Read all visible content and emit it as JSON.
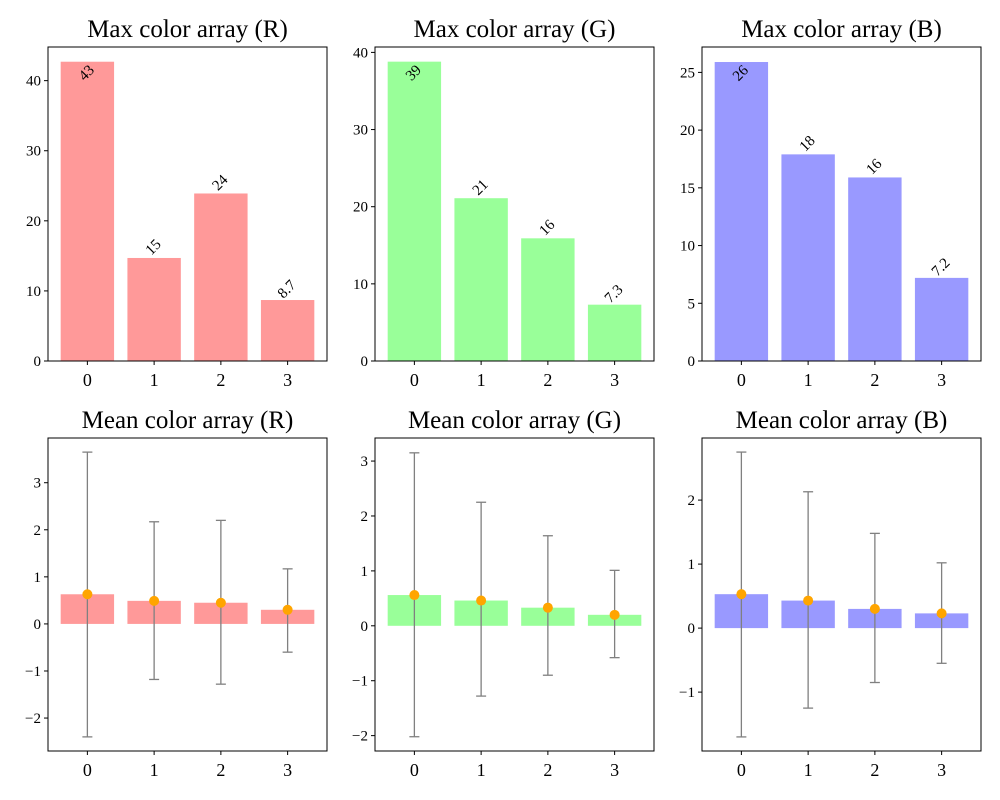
{
  "chart_data": [
    {
      "type": "bar",
      "title": "Max color array (R)",
      "categories": [
        "0",
        "1",
        "2",
        "3"
      ],
      "values": [
        42.7,
        14.7,
        23.9,
        8.7
      ],
      "bar_labels": [
        "43",
        "15",
        "24",
        "8.7"
      ],
      "ylim": [
        0,
        44.8
      ],
      "yticks": [
        0,
        10,
        20,
        30,
        40
      ],
      "color": "#ff9999"
    },
    {
      "type": "bar",
      "title": "Max color array (G)",
      "categories": [
        "0",
        "1",
        "2",
        "3"
      ],
      "values": [
        38.8,
        21.1,
        15.9,
        7.3
      ],
      "bar_labels": [
        "39",
        "21",
        "16",
        "7.3"
      ],
      "ylim": [
        0,
        40.7
      ],
      "yticks": [
        0,
        10,
        20,
        30,
        40
      ],
      "color": "#99ff99"
    },
    {
      "type": "bar",
      "title": "Max color array (B)",
      "categories": [
        "0",
        "1",
        "2",
        "3"
      ],
      "values": [
        25.9,
        17.9,
        15.9,
        7.2
      ],
      "bar_labels": [
        "26",
        "18",
        "16",
        "7.2"
      ],
      "ylim": [
        0,
        27.2
      ],
      "yticks": [
        0,
        5,
        10,
        15,
        20,
        25
      ],
      "color": "#9999ff"
    },
    {
      "type": "bar",
      "title": "Mean color array (R)",
      "categories": [
        "0",
        "1",
        "2",
        "3"
      ],
      "values": [
        0.63,
        0.49,
        0.45,
        0.3
      ],
      "error_low": [
        -2.4,
        -1.18,
        -1.28,
        -0.6
      ],
      "error_high": [
        3.65,
        2.17,
        2.2,
        1.17
      ],
      "ylim": [
        -2.7,
        3.95
      ],
      "yticks": [
        -2,
        -1,
        0,
        1,
        2,
        3
      ],
      "color": "#ff9999",
      "marker_color": "#ffa500",
      "errorbar_color": "#808080"
    },
    {
      "type": "bar",
      "title": "Mean color array (G)",
      "categories": [
        "0",
        "1",
        "2",
        "3"
      ],
      "values": [
        0.56,
        0.46,
        0.33,
        0.2
      ],
      "error_low": [
        -2.02,
        -1.28,
        -0.9,
        -0.58
      ],
      "error_high": [
        3.15,
        2.25,
        1.64,
        1.01
      ],
      "ylim": [
        -2.28,
        3.42
      ],
      "yticks": [
        -2,
        -1,
        0,
        1,
        2,
        3
      ],
      "color": "#99ff99",
      "marker_color": "#ffa500",
      "errorbar_color": "#808080"
    },
    {
      "type": "bar",
      "title": "Mean color array (B)",
      "categories": [
        "0",
        "1",
        "2",
        "3"
      ],
      "values": [
        0.53,
        0.43,
        0.3,
        0.23
      ],
      "error_low": [
        -1.7,
        -1.25,
        -0.85,
        -0.55
      ],
      "error_high": [
        2.75,
        2.13,
        1.48,
        1.02
      ],
      "ylim": [
        -1.92,
        2.97
      ],
      "yticks": [
        -1,
        0,
        1,
        2
      ],
      "color": "#9999ff",
      "marker_color": "#ffa500",
      "errorbar_color": "#808080"
    }
  ]
}
